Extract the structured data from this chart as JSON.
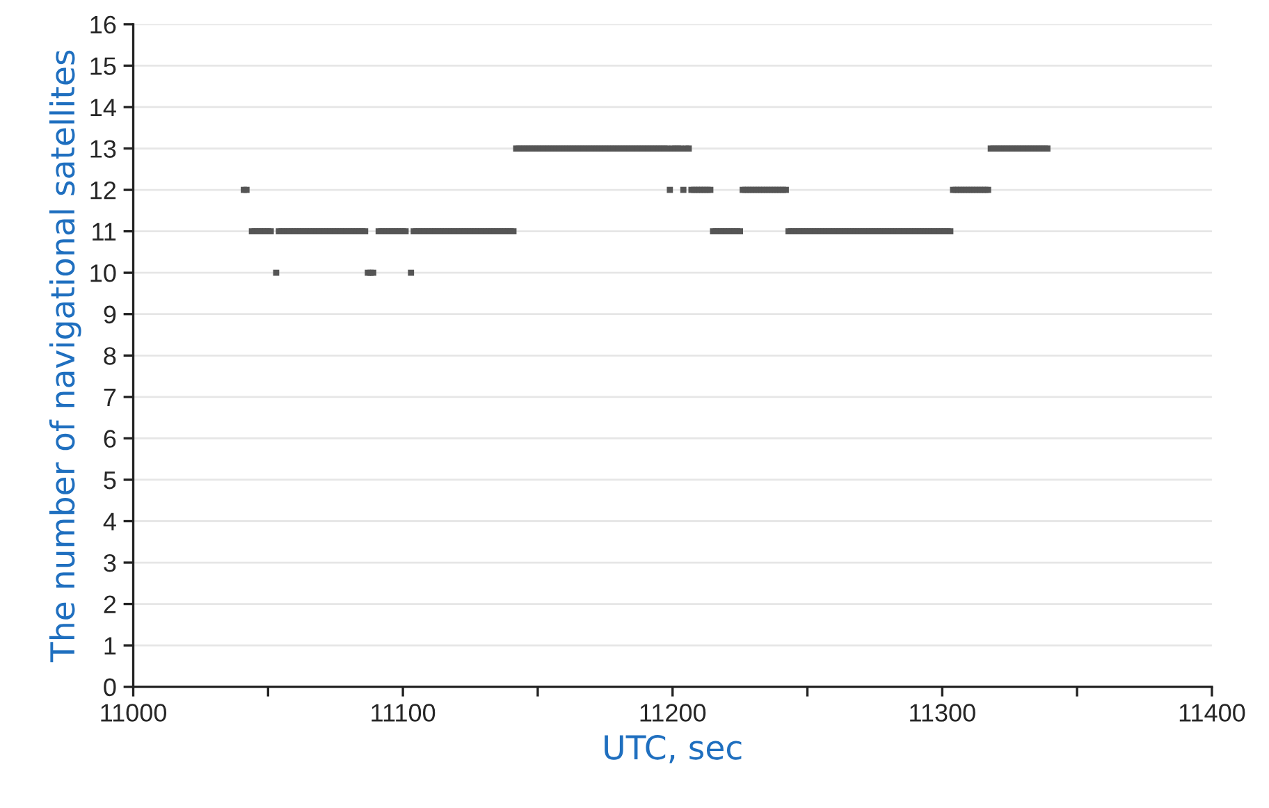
{
  "chart_data": {
    "type": "scatter",
    "xlabel": "UTC, sec",
    "ylabel": "The number of navigational satellites",
    "xlim": [
      11000,
      11400
    ],
    "ylim": [
      0,
      16
    ],
    "xticks": [
      11000,
      {
        "value": 11050,
        "label": null
      },
      11100,
      {
        "value": 11150,
        "label": null
      },
      11200,
      {
        "value": 11250,
        "label": null
      },
      11300,
      {
        "value": 11350,
        "label": null
      },
      11400
    ],
    "yticks": [
      0,
      1,
      2,
      3,
      4,
      5,
      6,
      7,
      8,
      9,
      10,
      11,
      12,
      13,
      14,
      15,
      16
    ],
    "grid": "y",
    "marker": "square",
    "x": [
      11041,
      11042,
      11044,
      11045,
      11046,
      11047,
      11048,
      11049,
      11050,
      11051,
      11053,
      11054,
      11055,
      11056,
      11057,
      11058,
      11059,
      11060,
      11061,
      11062,
      11063,
      11064,
      11065,
      11066,
      11067,
      11068,
      11069,
      11070,
      11071,
      11072,
      11073,
      11074,
      11075,
      11076,
      11077,
      11078,
      11079,
      11080,
      11081,
      11082,
      11083,
      11084,
      11085,
      11086,
      11087,
      11088,
      11089,
      11091,
      11092,
      11093,
      11094,
      11095,
      11096,
      11097,
      11098,
      11099,
      11100,
      11101,
      11103,
      11104,
      11105,
      11106,
      11107,
      11108,
      11109,
      11110,
      11111,
      11112,
      11113,
      11114,
      11115,
      11116,
      11117,
      11118,
      11119,
      11120,
      11121,
      11122,
      11123,
      11124,
      11125,
      11126,
      11127,
      11128,
      11129,
      11130,
      11131,
      11132,
      11133,
      11134,
      11135,
      11136,
      11137,
      11138,
      11139,
      11140,
      11141,
      11142,
      11143,
      11144,
      11145,
      11146,
      11147,
      11148,
      11149,
      11150,
      11151,
      11152,
      11153,
      11154,
      11155,
      11156,
      11157,
      11158,
      11159,
      11160,
      11161,
      11162,
      11163,
      11164,
      11165,
      11166,
      11167,
      11168,
      11169,
      11170,
      11171,
      11172,
      11173,
      11174,
      11175,
      11176,
      11177,
      11178,
      11179,
      11180,
      11181,
      11182,
      11183,
      11184,
      11185,
      11186,
      11187,
      11188,
      11189,
      11190,
      11191,
      11192,
      11193,
      11194,
      11195,
      11196,
      11197,
      11198,
      11199,
      11200,
      11201,
      11202,
      11203,
      11204,
      11205,
      11206,
      11207,
      11208,
      11209,
      11210,
      11211,
      11212,
      11213,
      11214,
      11215,
      11216,
      11217,
      11218,
      11219,
      11220,
      11221,
      11222,
      11223,
      11224,
      11225,
      11226,
      11227,
      11228,
      11229,
      11230,
      11231,
      11232,
      11233,
      11234,
      11235,
      11236,
      11237,
      11238,
      11239,
      11240,
      11241,
      11242,
      11243,
      11244,
      11245,
      11246,
      11247,
      11248,
      11249,
      11250,
      11251,
      11252,
      11253,
      11254,
      11255,
      11256,
      11257,
      11258,
      11259,
      11260,
      11261,
      11262,
      11263,
      11264,
      11265,
      11266,
      11267,
      11268,
      11269,
      11270,
      11271,
      11272,
      11273,
      11274,
      11275,
      11276,
      11277,
      11278,
      11279,
      11280,
      11281,
      11282,
      11283,
      11284,
      11285,
      11286,
      11287,
      11288,
      11289,
      11290,
      11291,
      11292,
      11293,
      11294,
      11295,
      11296,
      11297,
      11298,
      11299,
      11300,
      11301,
      11302,
      11303,
      11304,
      11305,
      11306,
      11307,
      11308,
      11309,
      11310,
      11311,
      11312,
      11313,
      11314,
      11315,
      11316,
      11317,
      11318,
      11319,
      11320,
      11321,
      11322,
      11323,
      11324,
      11325,
      11326,
      11327,
      11328,
      11329,
      11330,
      11331,
      11332,
      11333,
      11334,
      11335,
      11336,
      11337,
      11338,
      11339
    ],
    "series": [
      {
        "color": "#555555",
        "values": [
          12,
          12,
          11,
          11,
          11,
          11,
          11,
          11,
          11,
          11,
          10,
          11,
          11,
          11,
          11,
          11,
          11,
          11,
          11,
          11,
          11,
          11,
          11,
          11,
          11,
          11,
          11,
          11,
          11,
          11,
          11,
          11,
          11,
          11,
          11,
          11,
          11,
          11,
          11,
          11,
          11,
          11,
          11,
          11,
          10,
          10,
          10,
          11,
          11,
          11,
          11,
          11,
          11,
          11,
          11,
          11,
          11,
          11,
          10,
          11,
          11,
          11,
          11,
          11,
          11,
          11,
          11,
          11,
          11,
          11,
          11,
          11,
          11,
          11,
          11,
          11,
          11,
          11,
          11,
          11,
          11,
          11,
          11,
          11,
          11,
          11,
          11,
          11,
          11,
          11,
          11,
          11,
          11,
          11,
          11,
          11,
          11,
          13,
          13,
          13,
          13,
          13,
          13,
          13,
          13,
          13,
          13,
          13,
          13,
          13,
          13,
          13,
          13,
          13,
          13,
          13,
          13,
          13,
          13,
          13,
          13,
          13,
          13,
          13,
          13,
          13,
          13,
          13,
          13,
          13,
          13,
          13,
          13,
          13,
          13,
          13,
          13,
          13,
          13,
          13,
          13,
          13,
          13,
          13,
          13,
          13,
          13,
          13,
          13,
          13,
          13,
          13,
          13,
          13,
          12,
          13,
          13,
          13,
          13,
          12,
          13,
          13,
          12,
          12,
          12,
          12,
          12,
          12,
          12,
          12,
          11,
          11,
          11,
          11,
          11,
          11,
          11,
          11,
          11,
          11,
          11,
          12,
          12,
          12,
          12,
          12,
          12,
          12,
          12,
          12,
          12,
          12,
          12,
          12,
          12,
          12,
          12,
          12,
          11,
          11,
          11,
          11,
          11,
          11,
          11,
          11,
          11,
          11,
          11,
          11,
          11,
          11,
          11,
          11,
          11,
          11,
          11,
          11,
          11,
          11,
          11,
          11,
          11,
          11,
          11,
          11,
          11,
          11,
          11,
          11,
          11,
          11,
          11,
          11,
          11,
          11,
          11,
          11,
          11,
          11,
          11,
          11,
          11,
          11,
          11,
          11,
          11,
          11,
          11,
          11,
          11,
          11,
          11,
          11,
          11,
          11,
          11,
          11,
          11,
          12,
          12,
          12,
          12,
          12,
          12,
          12,
          12,
          12,
          12,
          12,
          12,
          12,
          12,
          13,
          13,
          13,
          13,
          13,
          13,
          13,
          13,
          13,
          13,
          13,
          13,
          13,
          13,
          13,
          13,
          13,
          13,
          13,
          13,
          13,
          13
        ]
      }
    ]
  }
}
